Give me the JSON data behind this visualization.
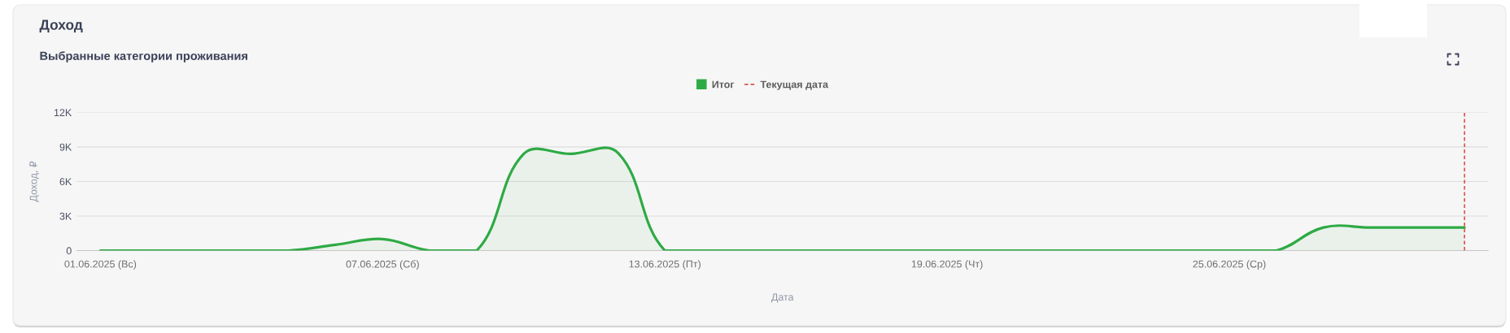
{
  "chart_data": {
    "type": "area",
    "title": "Доход",
    "subtitle": "Выбранные категории проживания",
    "xlabel": "Дата",
    "ylabel": "Доход, ₽",
    "x": [
      "2025-06-01",
      "2025-06-02",
      "2025-06-03",
      "2025-06-04",
      "2025-06-05",
      "2025-06-06",
      "2025-06-07",
      "2025-06-08",
      "2025-06-09",
      "2025-06-10",
      "2025-06-11",
      "2025-06-12",
      "2025-06-13",
      "2025-06-14",
      "2025-06-15",
      "2025-06-16",
      "2025-06-17",
      "2025-06-18",
      "2025-06-19",
      "2025-06-20",
      "2025-06-21",
      "2025-06-22",
      "2025-06-23",
      "2025-06-24",
      "2025-06-25",
      "2025-06-26",
      "2025-06-27",
      "2025-06-28",
      "2025-06-29",
      "2025-06-30"
    ],
    "series": [
      {
        "name": "Итог",
        "color": "#2eaa44",
        "values": [
          0,
          0,
          0,
          0,
          0,
          500,
          1000,
          0,
          0,
          8400,
          8400,
          8500,
          0,
          0,
          0,
          0,
          0,
          0,
          0,
          0,
          0,
          0,
          0,
          0,
          0,
          0,
          2000,
          2000,
          2000,
          2000
        ]
      }
    ],
    "xlim": [
      "2025-05-31T12:00",
      "2025-06-30T12:00"
    ],
    "xticks": [
      {
        "value": "2025-06-01",
        "label": "01.06.2025 (Вс)"
      },
      {
        "value": "2025-06-07",
        "label": "07.06.2025 (Сб)"
      },
      {
        "value": "2025-06-13",
        "label": "13.06.2025 (Пт)"
      },
      {
        "value": "2025-06-19",
        "label": "19.06.2025 (Чт)"
      },
      {
        "value": "2025-06-25",
        "label": "25.06.2025 (Ср)"
      }
    ],
    "ylim": [
      0,
      12000
    ],
    "yticks": [
      0,
      {
        "value": 3000,
        "label": "3K"
      },
      {
        "value": 6000,
        "label": "6K"
      },
      {
        "value": 9000,
        "label": "9K"
      },
      {
        "value": 12000,
        "label": "12K"
      }
    ],
    "ref_lines": [
      {
        "axis": "x",
        "value": "2025-06-30",
        "label": "Текущая дата",
        "color": "#d9544a",
        "line_style": "dashed"
      }
    ],
    "grid": "y",
    "legend": "top"
  }
}
